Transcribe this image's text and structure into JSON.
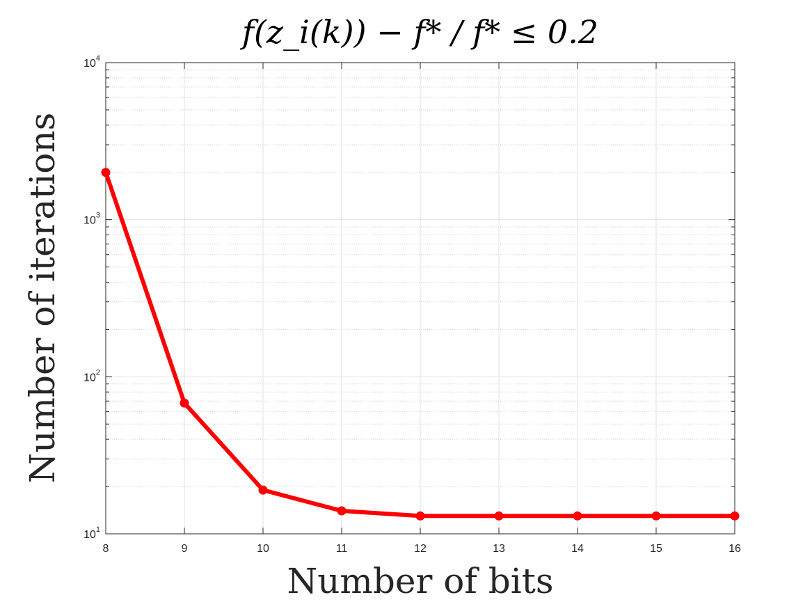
{
  "chart_data": {
    "type": "line",
    "title": "f(z_i(k)) − f* / f* ≤ 0.2",
    "xlabel": "Number of bits",
    "ylabel": "Number of iterations",
    "x": [
      8,
      9,
      10,
      11,
      12,
      13,
      14,
      15,
      16
    ],
    "xlim": [
      8,
      16
    ],
    "ylim": [
      10,
      10000
    ],
    "yscale": "log",
    "grid": true,
    "x_ticks": [
      "8",
      "9",
      "10",
      "11",
      "12",
      "13",
      "14",
      "15",
      "16"
    ],
    "y_ticks": [
      {
        "value": 10,
        "base": "10",
        "exp": "1"
      },
      {
        "value": 100,
        "base": "10",
        "exp": "2"
      },
      {
        "value": 1000,
        "base": "10",
        "exp": "3"
      },
      {
        "value": 10000,
        "base": "10",
        "exp": "4"
      }
    ],
    "series": [
      {
        "values": [
          2000,
          68,
          19,
          14,
          13,
          13,
          13,
          13,
          13
        ],
        "color": "#ff0000",
        "marker": "circle"
      }
    ]
  }
}
